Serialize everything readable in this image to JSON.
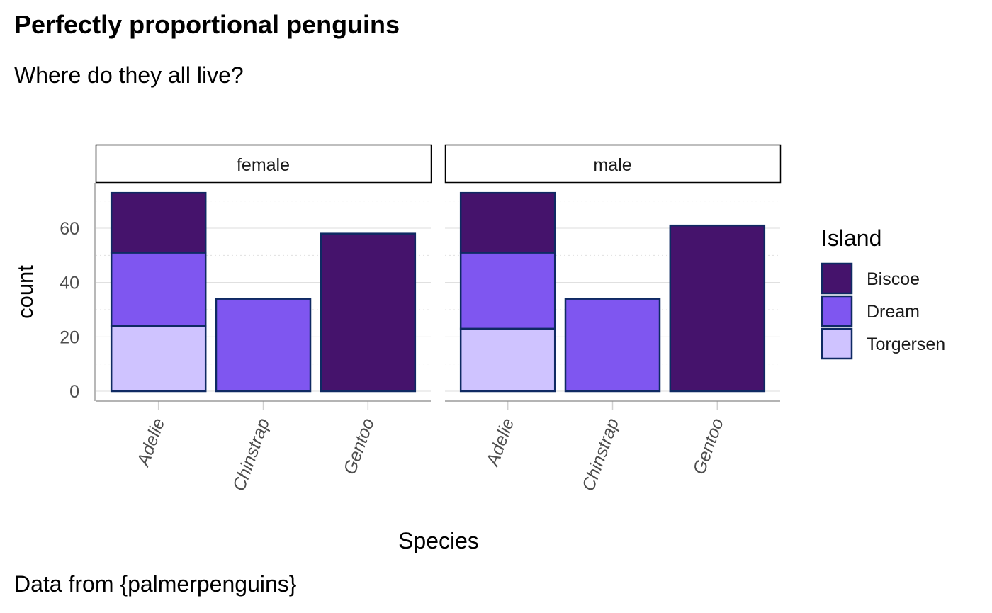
{
  "chart_data": {
    "type": "bar",
    "stacked": true,
    "title": "Perfectly proportional penguins",
    "subtitle": "Where do they all live?",
    "caption": "Data from {palmerpenguins}",
    "xlabel": "Species",
    "ylabel": "count",
    "ylim": [
      0,
      76
    ],
    "yticks": [
      0,
      20,
      40,
      60
    ],
    "categories": [
      "Adelie",
      "Chinstrap",
      "Gentoo"
    ],
    "legend": {
      "title": "Island",
      "position": "right",
      "entries": [
        "Biscoe",
        "Dream",
        "Torgersen"
      ]
    },
    "colors": {
      "Biscoe": "#45136c",
      "Dream": "#7f56f0",
      "Torgersen": "#cfc3ff",
      "outline": "#0f2a63"
    },
    "facets": [
      {
        "label": "female",
        "series": [
          {
            "name": "Biscoe",
            "values": [
              22,
              0,
              58
            ]
          },
          {
            "name": "Dream",
            "values": [
              27,
              34,
              0
            ]
          },
          {
            "name": "Torgersen",
            "values": [
              24,
              0,
              0
            ]
          }
        ]
      },
      {
        "label": "male",
        "series": [
          {
            "name": "Biscoe",
            "values": [
              22,
              0,
              61
            ]
          },
          {
            "name": "Dream",
            "values": [
              28,
              34,
              0
            ]
          },
          {
            "name": "Torgersen",
            "values": [
              23,
              0,
              0
            ]
          }
        ]
      }
    ]
  }
}
